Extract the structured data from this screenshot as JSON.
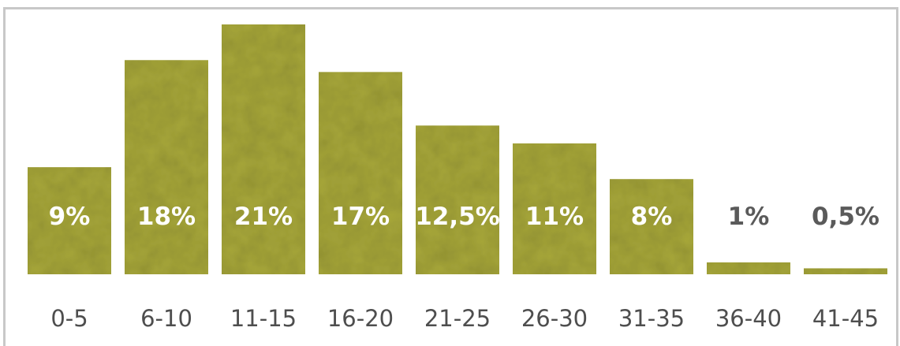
{
  "chart_data": {
    "type": "bar",
    "categories": [
      "0-5",
      "6-10",
      "11-15",
      "16-20",
      "21-25",
      "26-30",
      "31-35",
      "36-40",
      "41-45"
    ],
    "values": [
      9,
      18,
      21,
      17,
      12.5,
      11,
      8,
      1,
      0.5
    ],
    "value_labels": [
      "9%",
      "18%",
      "21%",
      "17%",
      "12,5%",
      "11%",
      "8%",
      "1%",
      "0,5%"
    ],
    "title": "",
    "xlabel": "",
    "ylabel": "",
    "ylim": [
      0,
      21
    ],
    "grid": false,
    "legend": "none"
  },
  "colors": {
    "bar_fill": "#a8a83a",
    "bar_light": "#b8b858",
    "bar_dark": "#8e8e2a",
    "label_inside": "#ffffff",
    "label_outside": "#5a5a5a",
    "frame": "#c8c8c8"
  }
}
